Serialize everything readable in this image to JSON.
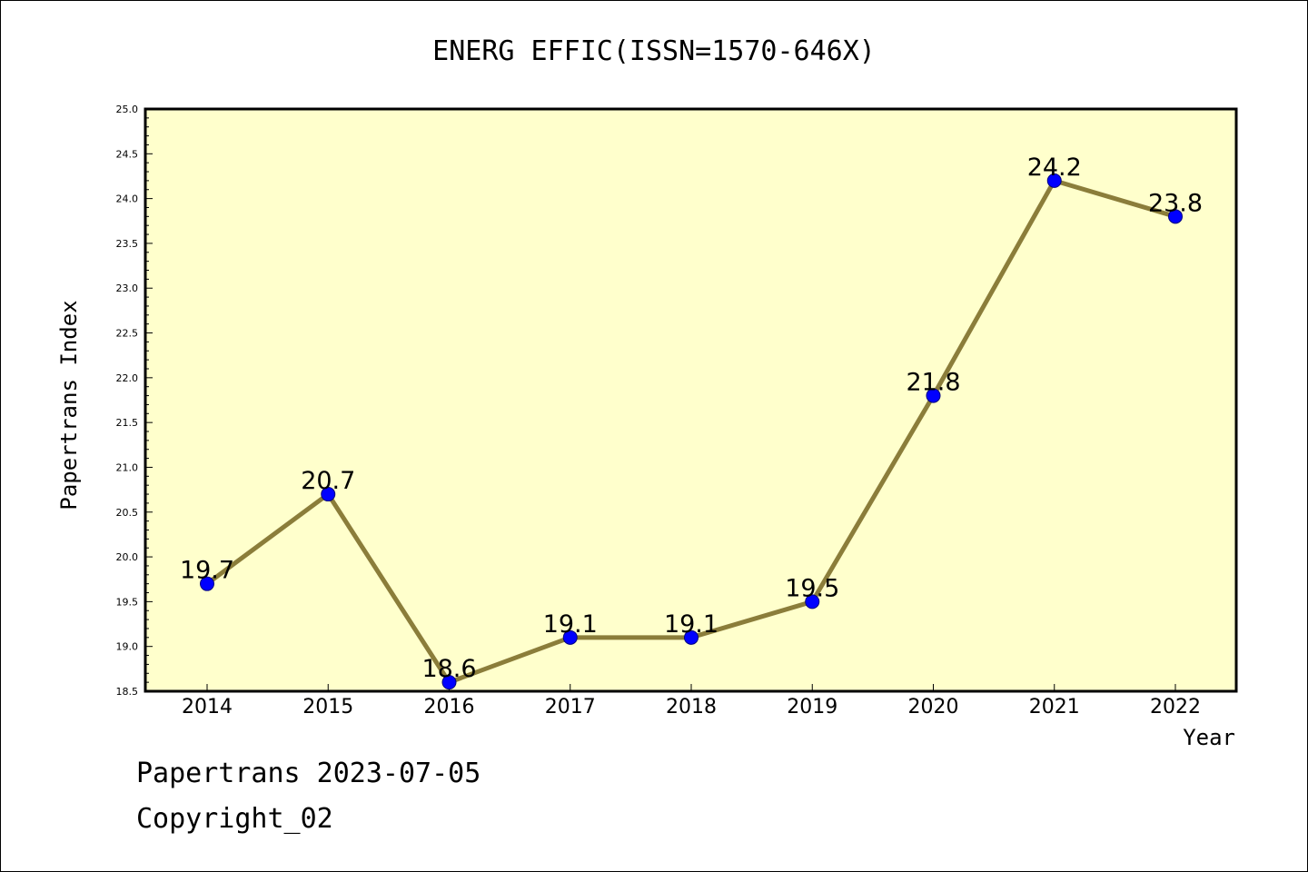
{
  "chart_data": {
    "type": "line",
    "title": "ENERG EFFIC(ISSN=1570-646X)",
    "xlabel": "Year",
    "ylabel": "Papertrans Index",
    "categories": [
      "2014",
      "2015",
      "2016",
      "2017",
      "2018",
      "2019",
      "2020",
      "2021",
      "2022"
    ],
    "values": [
      19.7,
      20.7,
      18.6,
      19.1,
      19.1,
      19.5,
      21.8,
      24.2,
      23.8
    ],
    "data_labels": [
      "19.7",
      "20.7",
      "18.6",
      "19.1",
      "19.1",
      "19.5",
      "21.8",
      "24.2",
      "23.8"
    ],
    "ylim": [
      18.5,
      25.0
    ],
    "yticks": [
      "18.5",
      "19.0",
      "19.5",
      "20.0",
      "20.5",
      "21.0",
      "21.5",
      "22.0",
      "22.5",
      "23.0",
      "23.5",
      "24.0",
      "24.5",
      "25.0"
    ],
    "grid": false,
    "legend": "none",
    "colors": {
      "plot_background": "#ffffcc",
      "line": "#8b7d3a",
      "marker": "#0000ff",
      "marker_edge": "#000080"
    }
  },
  "footer": {
    "date_text": "Papertrans 2023-07-05",
    "copyright_text": "Copyright_02"
  }
}
